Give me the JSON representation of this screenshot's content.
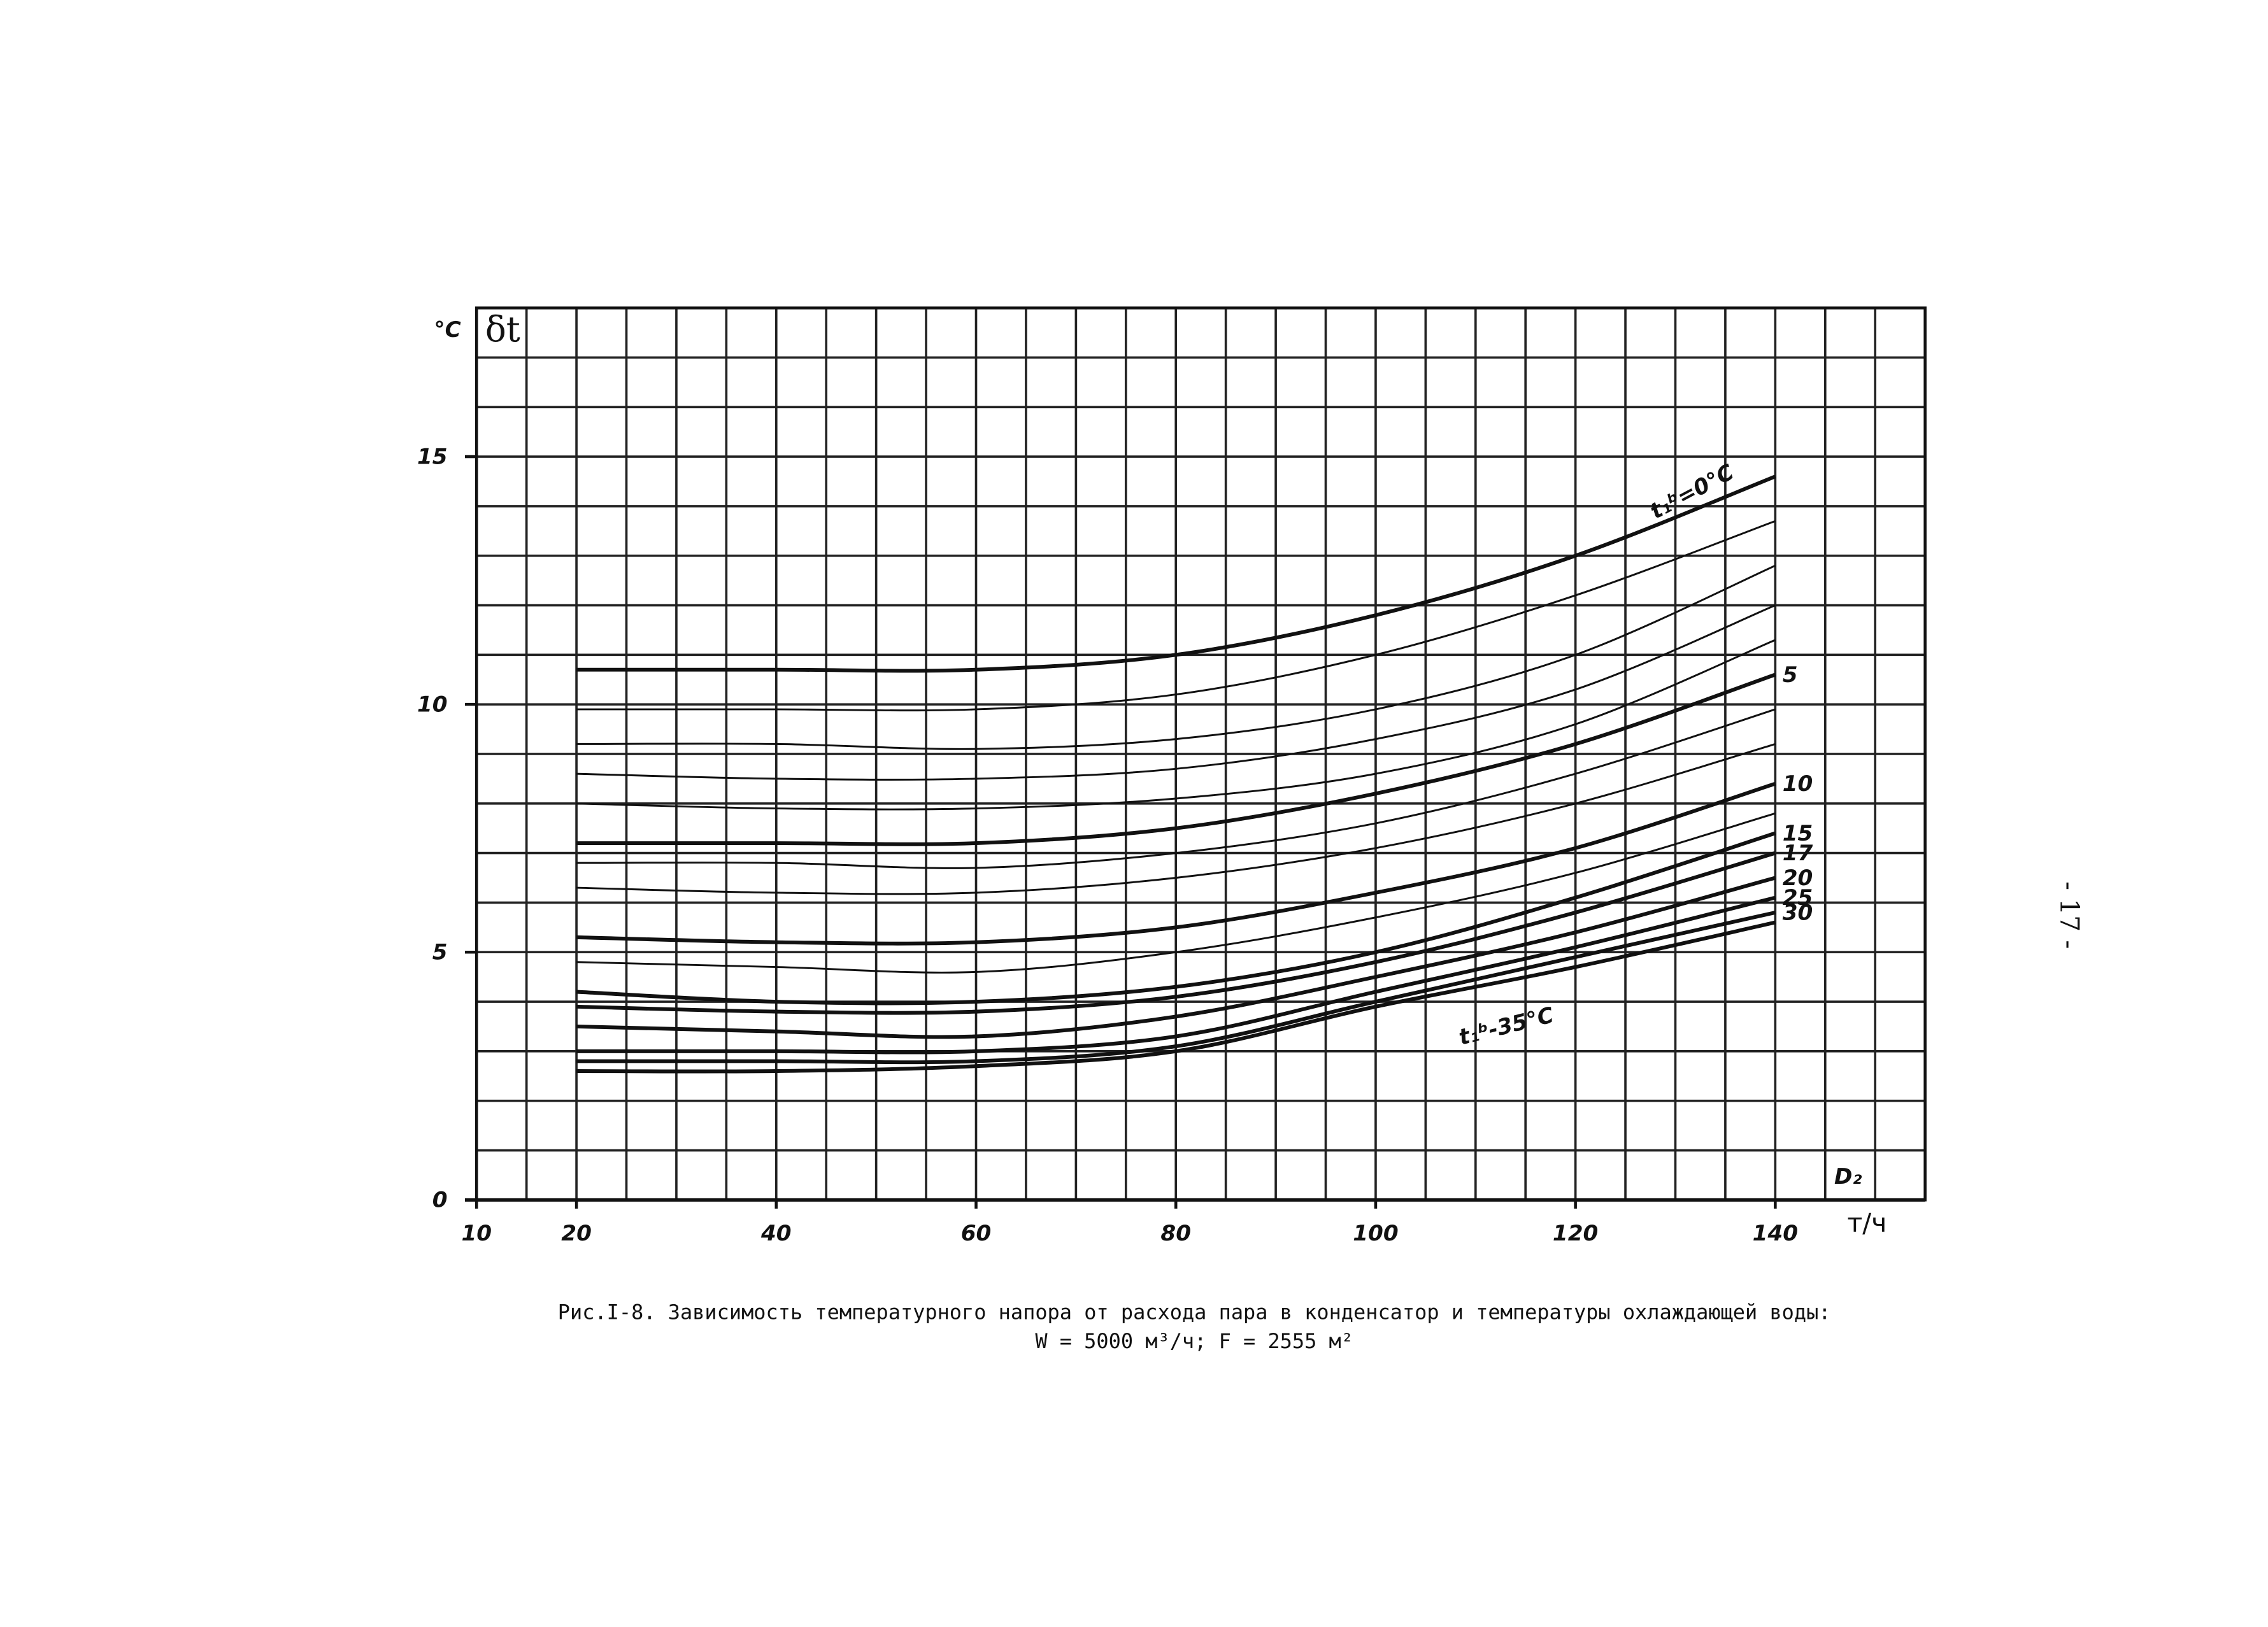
{
  "chart_data": {
    "type": "line",
    "y_unit": "°C",
    "ylabel": "δt",
    "xlabel": "D₂",
    "x_unit": "т/ч",
    "caption": [
      "Рис.I-8. Зависимость температурного напора от расхода пара в конденсатор и температуры охлаждающей воды:",
      "W = 5000 м³/ч;   F = 2555 м²"
    ],
    "page_number": "- 17 -",
    "xlim": [
      10,
      155
    ],
    "ylim": [
      0,
      18
    ],
    "xticks": [
      10,
      20,
      40,
      60,
      80,
      100,
      120,
      140
    ],
    "yticks": [
      0,
      5,
      10,
      15
    ],
    "xgrid": [
      10,
      15,
      20,
      25,
      30,
      35,
      40,
      45,
      50,
      55,
      60,
      65,
      70,
      75,
      80,
      85,
      90,
      95,
      100,
      105,
      110,
      115,
      120,
      125,
      130,
      135,
      140,
      145,
      150,
      155
    ],
    "ygrid": [
      0,
      1,
      2,
      3,
      4,
      5,
      6,
      7,
      8,
      9,
      10,
      11,
      12,
      13,
      14,
      15,
      16,
      17,
      18
    ],
    "grid": true,
    "color": "#111",
    "x": [
      20,
      40,
      60,
      80,
      100,
      120,
      140
    ],
    "series": [
      {
        "name": "t₁ᵇ=0°C",
        "values": [
          10.7,
          10.7,
          10.7,
          11.0,
          11.8,
          13.0,
          14.6
        ]
      },
      {
        "values": [
          9.9,
          9.9,
          9.9,
          10.2,
          11.0,
          12.2,
          13.7
        ]
      },
      {
        "values": [
          9.2,
          9.2,
          9.1,
          9.3,
          9.9,
          11.0,
          12.8
        ]
      },
      {
        "values": [
          8.6,
          8.5,
          8.5,
          8.7,
          9.3,
          10.3,
          12.0
        ]
      },
      {
        "values": [
          8.0,
          7.9,
          7.9,
          8.1,
          8.6,
          9.6,
          11.3
        ]
      },
      {
        "name": "5",
        "values": [
          7.2,
          7.2,
          7.2,
          7.5,
          8.2,
          9.2,
          10.6
        ]
      },
      {
        "values": [
          6.8,
          6.8,
          6.7,
          7.0,
          7.6,
          8.6,
          9.9
        ]
      },
      {
        "values": [
          6.3,
          6.2,
          6.2,
          6.5,
          7.1,
          8.0,
          9.2
        ]
      },
      {
        "name": "10",
        "values": [
          5.3,
          5.2,
          5.2,
          5.5,
          6.2,
          7.1,
          8.4
        ]
      },
      {
        "values": [
          4.8,
          4.7,
          4.6,
          5.0,
          5.7,
          6.6,
          7.8
        ]
      },
      {
        "name": "15",
        "values": [
          4.2,
          4.0,
          4.0,
          4.3,
          5.0,
          6.1,
          7.4
        ]
      },
      {
        "name": "17",
        "values": [
          3.9,
          3.8,
          3.8,
          4.1,
          4.8,
          5.8,
          7.0
        ]
      },
      {
        "name": "20",
        "values": [
          3.5,
          3.4,
          3.3,
          3.7,
          4.5,
          5.4,
          6.5
        ]
      },
      {
        "name": "25",
        "values": [
          3.0,
          3.0,
          3.0,
          3.3,
          4.2,
          5.1,
          6.1
        ]
      },
      {
        "name": "30",
        "values": [
          2.8,
          2.8,
          2.8,
          3.1,
          4.0,
          4.9,
          5.8
        ]
      },
      {
        "name": "t₁ᵇ-35°C",
        "values": [
          2.6,
          2.6,
          2.7,
          3.0,
          3.9,
          4.7,
          5.6
        ]
      }
    ]
  }
}
